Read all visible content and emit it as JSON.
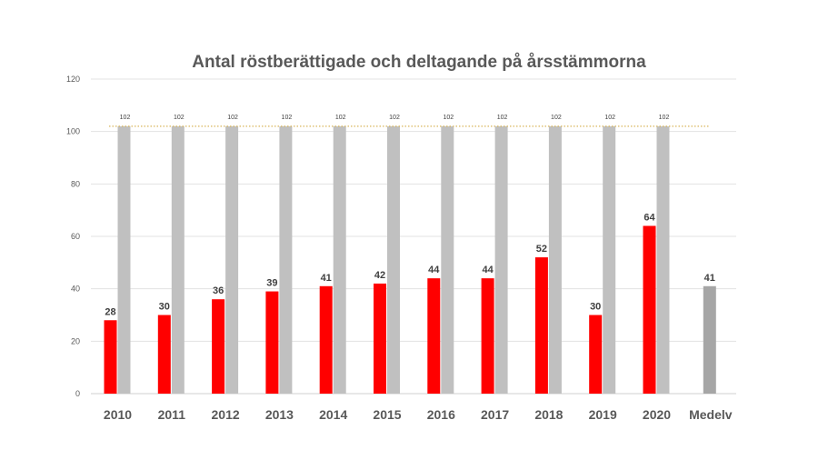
{
  "chart_data": {
    "type": "bar",
    "title": "Antal röstberättigade och deltagande på årsstämmorna",
    "xlabel": "",
    "ylabel": "",
    "ylim": [
      0,
      120
    ],
    "yticks": [
      0,
      20,
      40,
      60,
      80,
      100,
      120
    ],
    "grid": true,
    "categories": [
      "2010",
      "2011",
      "2012",
      "2013",
      "2014",
      "2015",
      "2016",
      "2017",
      "2018",
      "2019",
      "2020",
      "Medelv"
    ],
    "series": [
      {
        "values": [
          28,
          30,
          36,
          39,
          41,
          42,
          44,
          44,
          52,
          30,
          64,
          41
        ],
        "color": "#ff0000",
        "last_color": "#a6a6a6"
      },
      {
        "values": [
          102,
          102,
          102,
          102,
          102,
          102,
          102,
          102,
          102,
          102,
          102,
          null
        ],
        "color": "#c0c0c0"
      }
    ],
    "reference_line": {
      "value": 102,
      "color": "#d9b55a"
    }
  }
}
